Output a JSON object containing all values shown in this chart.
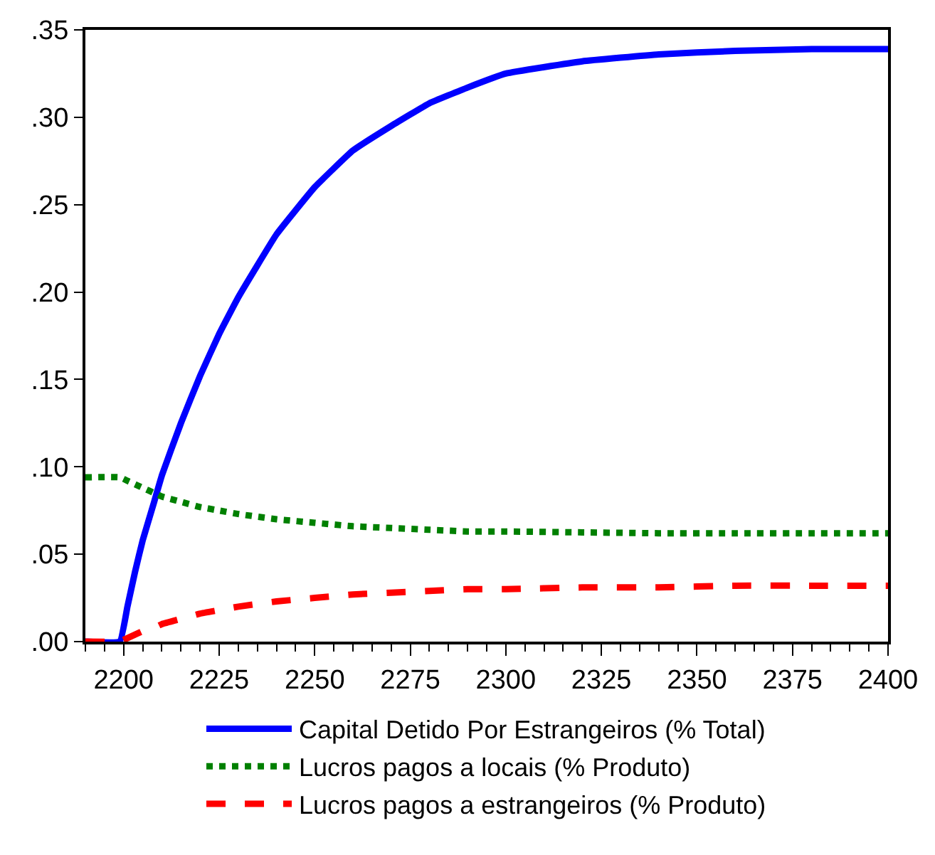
{
  "chart_data": {
    "type": "line",
    "x": [
      2190,
      2199,
      2201,
      2203,
      2205,
      2208,
      2210,
      2215,
      2220,
      2225,
      2230,
      2240,
      2250,
      2260,
      2270,
      2280,
      2290,
      2300,
      2320,
      2340,
      2360,
      2380,
      2400
    ],
    "series": [
      {
        "name": "Capital Detido Por Estrangeiros (% Total)",
        "color": "#0000ff",
        "line_style": "solid",
        "values": [
          0,
          0,
          0.02,
          0.04,
          0.058,
          0.08,
          0.095,
          0.125,
          0.152,
          0.176,
          0.197,
          0.233,
          0.26,
          0.281,
          0.295,
          0.308,
          0.317,
          0.325,
          0.332,
          0.336,
          0.338,
          0.339,
          0.339
        ]
      },
      {
        "name": "Lucros pagos a locais (% Produto)",
        "color": "#008000",
        "line_style": "dotted",
        "values": [
          0.094,
          0.094,
          0.092,
          0.09,
          0.088,
          0.085,
          0.083,
          0.08,
          0.077,
          0.075,
          0.073,
          0.07,
          0.068,
          0.066,
          0.065,
          0.064,
          0.063,
          0.063,
          0.0625,
          0.062,
          0.062,
          0.062,
          0.062
        ]
      },
      {
        "name": "Lucros pagos a estrangeiros (% Produto)",
        "color": "#ff0000",
        "line_style": "dashed",
        "values": [
          0,
          0,
          0.002,
          0.004,
          0.006,
          0.008,
          0.01,
          0.013,
          0.016,
          0.018,
          0.02,
          0.023,
          0.025,
          0.027,
          0.028,
          0.029,
          0.03,
          0.03,
          0.031,
          0.031,
          0.032,
          0.032,
          0.032
        ]
      }
    ],
    "xlim": [
      2190,
      2400
    ],
    "xticks": [
      2200,
      2225,
      2250,
      2275,
      2300,
      2325,
      2350,
      2375,
      2400
    ],
    "ylim": [
      0,
      0.35
    ],
    "yticks": [
      {
        "value": 0,
        "label": ".00"
      },
      {
        "value": 0.05,
        "label": ".05"
      },
      {
        "value": 0.1,
        "label": ".10"
      },
      {
        "value": 0.15,
        "label": ".15"
      },
      {
        "value": 0.2,
        "label": ".20"
      },
      {
        "value": 0.25,
        "label": ".25"
      },
      {
        "value": 0.3,
        "label": ".30"
      },
      {
        "value": 0.35,
        "label": ".35"
      }
    ],
    "legend": "bottom",
    "marker": "none"
  }
}
